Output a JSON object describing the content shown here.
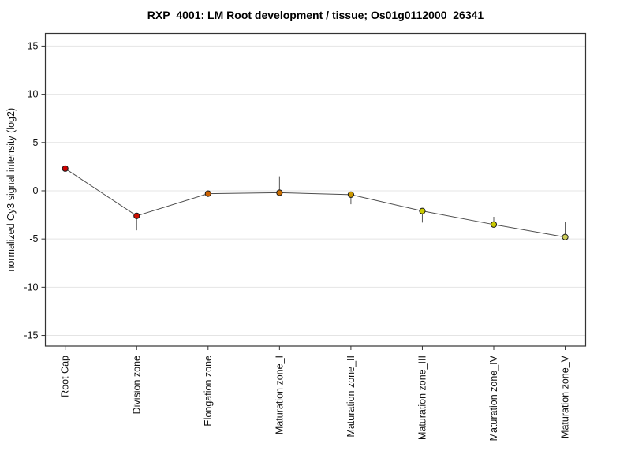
{
  "chart_data": {
    "type": "line",
    "title": "RXP_4001: LM Root development / tissue; Os01g0112000_26341",
    "xlabel": "",
    "ylabel": "normalized Cy3 signal intensity (log2)",
    "ylim": [
      -16.1,
      16.3
    ],
    "yticks": [
      15,
      10,
      5,
      0,
      -5,
      -10,
      -15
    ],
    "grid": "horizontal-only",
    "legend": "none",
    "categories": [
      "Root Cap",
      "Division zone",
      "Elongation zone",
      "Maturation zone_I",
      "Maturation zone_II",
      "Maturation zone_III",
      "Maturation zone_IV",
      "Maturation zone_V"
    ],
    "points": [
      {
        "category": "Root Cap",
        "value": 2.3,
        "error_low": null,
        "error_high": null,
        "color": "#cc0000"
      },
      {
        "category": "Division zone",
        "value": -2.6,
        "error_low": -4.1,
        "error_high": null,
        "color": "#cc0e00"
      },
      {
        "category": "Elongation zone",
        "value": -0.3,
        "error_low": null,
        "error_high": null,
        "color": "#cc6100"
      },
      {
        "category": "Maturation zone_I",
        "value": -0.2,
        "error_low": null,
        "error_high": 1.5,
        "color": "#cc6e00"
      },
      {
        "category": "Maturation zone_II",
        "value": -0.4,
        "error_low": -1.4,
        "error_high": null,
        "color": "#cc9900"
      },
      {
        "category": "Maturation zone_III",
        "value": -2.1,
        "error_low": -3.3,
        "error_high": null,
        "color": "#cccc00"
      },
      {
        "category": "Maturation zone_IV",
        "value": -3.5,
        "error_low": null,
        "error_high": -2.7,
        "color": "#c9c900"
      },
      {
        "category": "Maturation zone_V",
        "value": -4.8,
        "error_low": null,
        "error_high": -3.2,
        "color": "#cccc59"
      }
    ],
    "colors": {
      "background": "#ffffff",
      "plot_border": "#333333",
      "gridline": "#e4e4e4",
      "tick": "#333333",
      "series_line": "#4d4d4d",
      "error_bar": "#555555",
      "point_outline": "#1a1a1a"
    }
  }
}
